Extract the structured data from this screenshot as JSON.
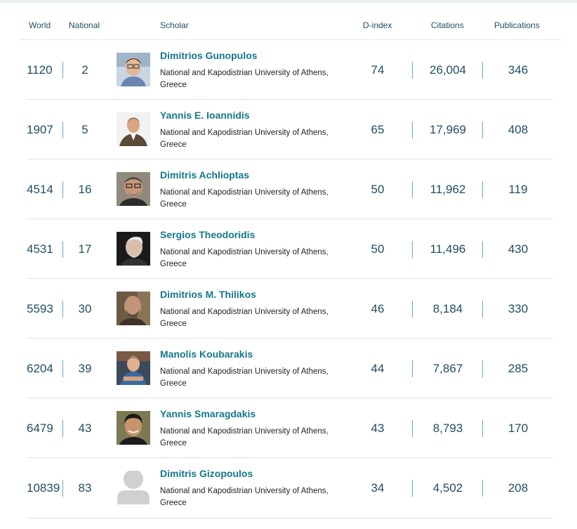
{
  "header": {
    "world": "World",
    "national": "National",
    "scholar": "Scholar",
    "dindex": "D-index",
    "citations": "Citations",
    "publications": "Publications"
  },
  "rows": [
    {
      "world": "1120",
      "national": "2",
      "name": "Dimitrios Gunopulos",
      "affiliation": "National and Kapodistrian University of Athens, Greece",
      "dindex": "74",
      "citations": "26,004",
      "publications": "346",
      "photo": "portrait"
    },
    {
      "world": "1907",
      "national": "5",
      "name": "Yannis E. Ioannidis",
      "affiliation": "National and Kapodistrian University of Athens, Greece",
      "dindex": "65",
      "citations": "17,969",
      "publications": "408",
      "photo": "portrait"
    },
    {
      "world": "4514",
      "national": "16",
      "name": "Dimitris Achlioptas",
      "affiliation": "National and Kapodistrian University of Athens, Greece",
      "dindex": "50",
      "citations": "11,962",
      "publications": "119",
      "photo": "portrait"
    },
    {
      "world": "4531",
      "national": "17",
      "name": "Sergios Theodoridis",
      "affiliation": "National and Kapodistrian University of Athens, Greece",
      "dindex": "50",
      "citations": "11,496",
      "publications": "430",
      "photo": "portrait"
    },
    {
      "world": "5593",
      "national": "30",
      "name": "Dimitrios M. Thilikos",
      "affiliation": "National and Kapodistrian University of Athens, Greece",
      "dindex": "46",
      "citations": "8,184",
      "publications": "330",
      "photo": "portrait"
    },
    {
      "world": "6204",
      "national": "39",
      "name": "Manolis Koubarakis",
      "affiliation": "National and Kapodistrian University of Athens, Greece",
      "dindex": "44",
      "citations": "7,867",
      "publications": "285",
      "photo": "portrait"
    },
    {
      "world": "6479",
      "national": "43",
      "name": "Yannis Smaragdakis",
      "affiliation": "National and Kapodistrian University of Athens, Greece",
      "dindex": "43",
      "citations": "8,793",
      "publications": "170",
      "photo": "portrait"
    },
    {
      "world": "10839",
      "national": "83",
      "name": "Dimitris Gizopoulos",
      "affiliation": "National and Kapodistrian University of Athens, Greece",
      "dindex": "34",
      "citations": "4,502",
      "publications": "208",
      "photo": "placeholder-avatar"
    }
  ]
}
